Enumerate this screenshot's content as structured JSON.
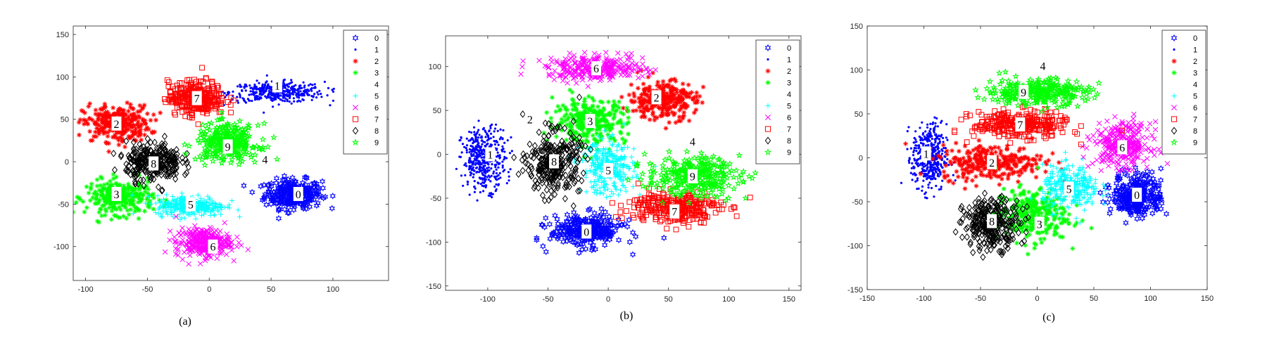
{
  "colors": {
    "0": "#0000ff",
    "1": "#0000ff",
    "2": "#ff0000",
    "3": "#00ff00",
    "4": "#ffff00",
    "5": "#00ffff",
    "6": "#ff00ff",
    "7": "#ff0000",
    "8": "#000000",
    "9": "#00ff00"
  },
  "chart_data": [
    {
      "type": "scatter",
      "caption": "(a)",
      "xlim": [
        -110,
        145
      ],
      "ylim": [
        -140,
        160
      ],
      "xticks": [
        -100,
        -50,
        0,
        50,
        100
      ],
      "yticks": [
        -100,
        -50,
        0,
        50,
        100,
        150
      ],
      "grid": false,
      "legend_position": "top-right",
      "series": [
        {
          "name": "0",
          "marker": "hexagram",
          "cx": 68,
          "cy": -38,
          "rx": 23,
          "ry": 17
        },
        {
          "name": "1",
          "marker": "point",
          "cx": 55,
          "cy": 82,
          "rx": 38,
          "ry": 12
        },
        {
          "name": "2",
          "marker": "asterisk",
          "cx": -75,
          "cy": 45,
          "rx": 27,
          "ry": 21
        },
        {
          "name": "3",
          "marker": "asterisk",
          "cx": -72,
          "cy": -42,
          "rx": 27,
          "ry": 20
        },
        {
          "name": "4",
          "marker": "circle",
          "cx": 45,
          "cy": 5,
          "rx": 24,
          "ry": 18
        },
        {
          "name": "5",
          "marker": "plus",
          "cx": -15,
          "cy": -52,
          "rx": 28,
          "ry": 12
        },
        {
          "name": "6",
          "marker": "x",
          "cx": -5,
          "cy": -95,
          "rx": 22,
          "ry": 17
        },
        {
          "name": "7",
          "marker": "square",
          "cx": -10,
          "cy": 75,
          "rx": 23,
          "ry": 20
        },
        {
          "name": "8",
          "marker": "diamond",
          "cx": -45,
          "cy": 0,
          "rx": 22,
          "ry": 22
        },
        {
          "name": "9",
          "marker": "pentagram",
          "cx": 15,
          "cy": 22,
          "rx": 25,
          "ry": 22
        }
      ],
      "labels": [
        {
          "text": "0",
          "x": 72,
          "y": -38
        },
        {
          "text": "1",
          "x": 55,
          "y": 90
        },
        {
          "text": "2",
          "x": -75,
          "y": 45
        },
        {
          "text": "3",
          "x": -75,
          "y": -38
        },
        {
          "text": "4",
          "x": 45,
          "y": 3
        },
        {
          "text": "5",
          "x": -15,
          "y": -50
        },
        {
          "text": "6",
          "x": 3,
          "y": -100
        },
        {
          "text": "7",
          "x": -10,
          "y": 75
        },
        {
          "text": "8",
          "x": -45,
          "y": -2
        },
        {
          "text": "9",
          "x": 15,
          "y": 18
        }
      ]
    },
    {
      "type": "scatter",
      "caption": "(b)",
      "xlim": [
        -135,
        160
      ],
      "ylim": [
        -155,
        135
      ],
      "xticks": [
        -100,
        -50,
        0,
        50,
        100,
        150
      ],
      "yticks": [
        -150,
        -100,
        -50,
        0,
        50,
        100
      ],
      "grid": false,
      "legend_position": "top-right",
      "series": [
        {
          "name": "0",
          "marker": "hexagram",
          "cx": -18,
          "cy": -87,
          "rx": 30,
          "ry": 18
        },
        {
          "name": "1",
          "marker": "point",
          "cx": -103,
          "cy": -5,
          "rx": 18,
          "ry": 35
        },
        {
          "name": "2",
          "marker": "asterisk",
          "cx": 45,
          "cy": 62,
          "rx": 28,
          "ry": 22
        },
        {
          "name": "3",
          "marker": "asterisk",
          "cx": -15,
          "cy": 38,
          "rx": 30,
          "ry": 25
        },
        {
          "name": "4",
          "marker": "circle",
          "cx": 70,
          "cy": 15,
          "rx": 28,
          "ry": 20
        },
        {
          "name": "5",
          "marker": "plus",
          "cx": 0,
          "cy": -15,
          "rx": 22,
          "ry": 30
        },
        {
          "name": "6",
          "marker": "x",
          "cx": -10,
          "cy": 98,
          "rx": 40,
          "ry": 14
        },
        {
          "name": "7",
          "marker": "square",
          "cx": 55,
          "cy": -60,
          "rx": 38,
          "ry": 18
        },
        {
          "name": "8",
          "marker": "diamond",
          "cx": -45,
          "cy": -10,
          "rx": 22,
          "ry": 35
        },
        {
          "name": "9",
          "marker": "pentagram",
          "cx": 70,
          "cy": -25,
          "rx": 38,
          "ry": 22
        }
      ],
      "labels": [
        {
          "text": "0",
          "x": -18,
          "y": -88
        },
        {
          "text": "1",
          "x": -98,
          "y": 0
        },
        {
          "text": "2",
          "x": 40,
          "y": 65
        },
        {
          "text": "2",
          "x": -65,
          "y": 40
        },
        {
          "text": "3",
          "x": -15,
          "y": 38
        },
        {
          "text": "4",
          "x": 70,
          "y": 15
        },
        {
          "text": "5",
          "x": 0,
          "y": -18
        },
        {
          "text": "6",
          "x": -10,
          "y": 98
        },
        {
          "text": "7",
          "x": 55,
          "y": -65
        },
        {
          "text": "8",
          "x": -45,
          "y": -8
        },
        {
          "text": "9",
          "x": 70,
          "y": -25
        }
      ]
    },
    {
      "type": "scatter",
      "caption": "(c)",
      "xlim": [
        -150,
        150
      ],
      "ylim": [
        -150,
        150
      ],
      "xticks": [
        -150,
        -100,
        -50,
        0,
        50,
        100,
        150
      ],
      "yticks": [
        -150,
        -100,
        -50,
        0,
        50,
        100,
        150
      ],
      "grid": false,
      "legend_position": "top-right",
      "series": [
        {
          "name": "0",
          "marker": "hexagram",
          "cx": 88,
          "cy": -42,
          "rx": 22,
          "ry": 25
        },
        {
          "name": "1",
          "marker": "point",
          "cx": -95,
          "cy": 0,
          "rx": 15,
          "ry": 38
        },
        {
          "name": "2",
          "marker": "asterisk",
          "cx": -40,
          "cy": -5,
          "rx": 45,
          "ry": 20
        },
        {
          "name": "3",
          "marker": "asterisk",
          "cx": -5,
          "cy": -65,
          "rx": 32,
          "ry": 30
        },
        {
          "name": "4",
          "marker": "circle",
          "cx": 5,
          "cy": 105,
          "rx": 35,
          "ry": 12
        },
        {
          "name": "5",
          "marker": "plus",
          "cx": 30,
          "cy": -35,
          "rx": 25,
          "ry": 25
        },
        {
          "name": "6",
          "marker": "x",
          "cx": 75,
          "cy": 15,
          "rx": 25,
          "ry": 25
        },
        {
          "name": "7",
          "marker": "square",
          "cx": -15,
          "cy": 38,
          "rx": 42,
          "ry": 15
        },
        {
          "name": "8",
          "marker": "diamond",
          "cx": -40,
          "cy": -75,
          "rx": 25,
          "ry": 28
        },
        {
          "name": "9",
          "marker": "pentagram",
          "cx": 0,
          "cy": 75,
          "rx": 45,
          "ry": 15
        }
      ],
      "labels": [
        {
          "text": "0",
          "x": 88,
          "y": -42
        },
        {
          "text": "1",
          "x": -98,
          "y": 5
        },
        {
          "text": "2",
          "x": -40,
          "y": -5
        },
        {
          "text": "3",
          "x": 2,
          "y": -75
        },
        {
          "text": "4",
          "x": 5,
          "y": 105
        },
        {
          "text": "5",
          "x": 28,
          "y": -35
        },
        {
          "text": "6",
          "x": 75,
          "y": 12
        },
        {
          "text": "7",
          "x": -15,
          "y": 38
        },
        {
          "text": "8",
          "x": -40,
          "y": -72
        },
        {
          "text": "9",
          "x": -12,
          "y": 75
        }
      ]
    }
  ]
}
